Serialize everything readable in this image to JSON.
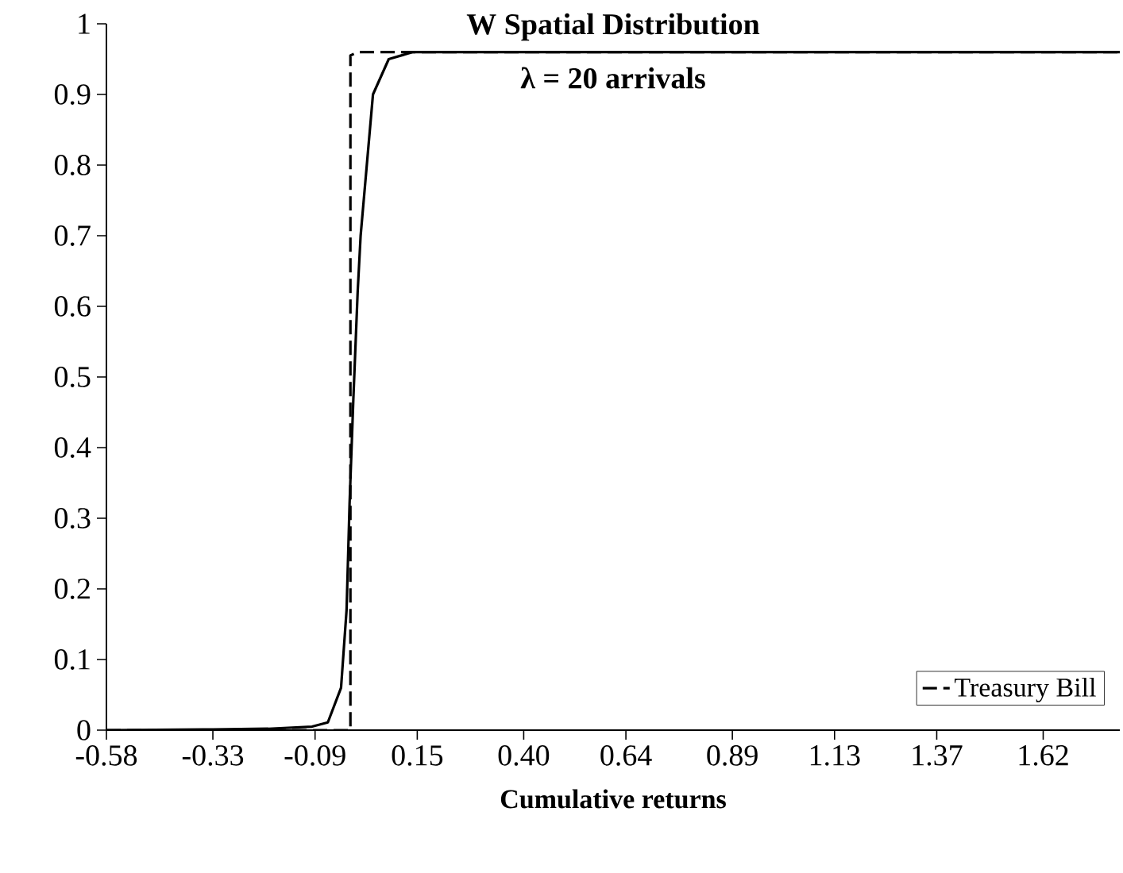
{
  "chart_data": {
    "type": "line",
    "title": "W Spatial Distribution",
    "subtitle": "λ = 20 arrivals",
    "xlabel": "Cumulative returns",
    "xlim": [
      -0.58,
      1.8
    ],
    "ylim": [
      0,
      1
    ],
    "xticks": [
      {
        "value": -0.58,
        "label": "-0.58"
      },
      {
        "value": -0.33,
        "label": "-0.33"
      },
      {
        "value": -0.09,
        "label": "-0.09"
      },
      {
        "value": 0.15,
        "label": "0.15"
      },
      {
        "value": 0.4,
        "label": "0.40"
      },
      {
        "value": 0.64,
        "label": "0.64"
      },
      {
        "value": 0.89,
        "label": "0.89"
      },
      {
        "value": 1.13,
        "label": "1.13"
      },
      {
        "value": 1.37,
        "label": "1.37"
      },
      {
        "value": 1.62,
        "label": "1.62"
      }
    ],
    "yticks": [
      0,
      0.1,
      0.2,
      0.3,
      0.4,
      0.5,
      0.6,
      0.7,
      0.8,
      0.9,
      1
    ],
    "grid": false,
    "legend": "bottom right",
    "marker": "none",
    "series": [
      {
        "color": "#000000",
        "line_style": "solid",
        "x": [
          -0.58,
          -0.33,
          -0.2,
          -0.097,
          -0.06,
          -0.029,
          -0.016,
          -0.009,
          0.0,
          0.01,
          0.017,
          0.046,
          0.083,
          0.14,
          1.8
        ],
        "values": [
          0,
          0.001,
          0.002,
          0.005,
          0.011,
          0.06,
          0.17,
          0.32,
          0.47,
          0.62,
          0.7,
          0.9,
          0.95,
          0.96,
          0.96
        ]
      },
      {
        "name": "Treasury Bill",
        "color": "#000000",
        "line_style": "dashed",
        "x": [
          -0.58,
          -0.007,
          -0.007,
          0.01,
          1.8
        ],
        "values": [
          0,
          0,
          0.955,
          0.96,
          0.96
        ]
      }
    ]
  }
}
